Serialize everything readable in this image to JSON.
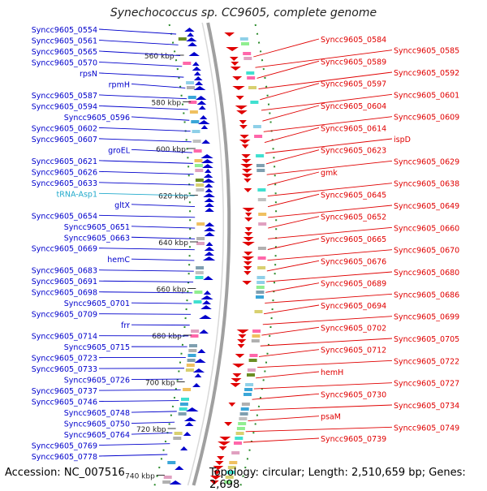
{
  "title": "Synechococcus sp. CC9605, complete genome",
  "footer": {
    "accession": "Accession: NC_007516",
    "topology": "Topology: circular; Length: 2,510,659 bp; Genes: 2,698"
  },
  "colors": {
    "left_gene": "#0000cc",
    "right_gene": "#e00000",
    "trna": "#22aacc",
    "backbone": "#a0a0a0",
    "tick": "#2a8a2a"
  },
  "ticks": [
    "560 kbp",
    "580 kbp",
    "600 kbp",
    "620 kbp",
    "640 kbp",
    "660 kbp",
    "680 kbp",
    "700 kbp",
    "720 kbp",
    "740 kbp"
  ],
  "left_labels": [
    {
      "text": "Syncc9605_0554",
      "kind": "gene"
    },
    {
      "text": "Syncc9605_0561",
      "kind": "gene"
    },
    {
      "text": "Syncc9605_0565",
      "kind": "gene"
    },
    {
      "text": "Syncc9605_0570",
      "kind": "gene"
    },
    {
      "text": "rpsN",
      "kind": "gene"
    },
    {
      "text": "rpmH",
      "kind": "gene"
    },
    {
      "text": "Syncc9605_0587",
      "kind": "gene"
    },
    {
      "text": "Syncc9605_0594",
      "kind": "gene"
    },
    {
      "text": "Syncc9605_0596",
      "kind": "gene"
    },
    {
      "text": "Syncc9605_0602",
      "kind": "gene"
    },
    {
      "text": "Syncc9605_0607",
      "kind": "gene"
    },
    {
      "text": "groEL",
      "kind": "gene"
    },
    {
      "text": "Syncc9605_0621",
      "kind": "gene"
    },
    {
      "text": "Syncc9605_0626",
      "kind": "gene"
    },
    {
      "text": "Syncc9605_0633",
      "kind": "gene"
    },
    {
      "text": "tRNA-Asp1",
      "kind": "trna"
    },
    {
      "text": "gltX",
      "kind": "gene"
    },
    {
      "text": "Syncc9605_0654",
      "kind": "gene"
    },
    {
      "text": "Syncc9605_0651",
      "kind": "gene"
    },
    {
      "text": "Syncc9605_0663",
      "kind": "gene"
    },
    {
      "text": "Syncc9605_0669",
      "kind": "gene"
    },
    {
      "text": "hemC",
      "kind": "gene"
    },
    {
      "text": "Syncc9605_0683",
      "kind": "gene"
    },
    {
      "text": "Syncc9605_0691",
      "kind": "gene"
    },
    {
      "text": "Syncc9605_0698",
      "kind": "gene"
    },
    {
      "text": "Syncc9605_0701",
      "kind": "gene"
    },
    {
      "text": "Syncc9605_0709",
      "kind": "gene"
    },
    {
      "text": "frr",
      "kind": "gene"
    },
    {
      "text": "Syncc9605_0714",
      "kind": "gene"
    },
    {
      "text": "Syncc9605_0715",
      "kind": "gene"
    },
    {
      "text": "Syncc9605_0723",
      "kind": "gene"
    },
    {
      "text": "Syncc9605_0733",
      "kind": "gene"
    },
    {
      "text": "Syncc9605_0726",
      "kind": "gene"
    },
    {
      "text": "Syncc9605_0737",
      "kind": "gene"
    },
    {
      "text": "Syncc9605_0746",
      "kind": "gene"
    },
    {
      "text": "Syncc9605_0748",
      "kind": "gene"
    },
    {
      "text": "Syncc9605_0750",
      "kind": "gene"
    },
    {
      "text": "Syncc9605_0764",
      "kind": "gene"
    },
    {
      "text": "Syncc9605_0769",
      "kind": "gene"
    },
    {
      "text": "Syncc9605_0778",
      "kind": "gene"
    }
  ],
  "right_labels": [
    {
      "text": "Syncc9605_0584"
    },
    {
      "text": "Syncc9605_0585"
    },
    {
      "text": "Syncc9605_0589"
    },
    {
      "text": "Syncc9605_0592"
    },
    {
      "text": "Syncc9605_0597"
    },
    {
      "text": "Syncc9605_0601"
    },
    {
      "text": "Syncc9605_0604"
    },
    {
      "text": "Syncc9605_0609"
    },
    {
      "text": "Syncc9605_0614"
    },
    {
      "text": "ispD"
    },
    {
      "text": "Syncc9605_0623"
    },
    {
      "text": "Syncc9605_0629"
    },
    {
      "text": "gmk"
    },
    {
      "text": "Syncc9605_0638"
    },
    {
      "text": "Syncc9605_0645"
    },
    {
      "text": "Syncc9605_0649"
    },
    {
      "text": "Syncc9605_0652"
    },
    {
      "text": "Syncc9605_0660"
    },
    {
      "text": "Syncc9605_0665"
    },
    {
      "text": "Syncc9605_0670"
    },
    {
      "text": "Syncc9605_0676"
    },
    {
      "text": "Syncc9605_0680"
    },
    {
      "text": "Syncc9605_0689"
    },
    {
      "text": "Syncc9605_0686"
    },
    {
      "text": "Syncc9605_0694"
    },
    {
      "text": "Syncc9605_0699"
    },
    {
      "text": "Syncc9605_0702"
    },
    {
      "text": "Syncc9605_0705"
    },
    {
      "text": "Syncc9605_0712"
    },
    {
      "text": "Syncc9605_0722"
    },
    {
      "text": "hemH"
    },
    {
      "text": "Syncc9605_0727"
    },
    {
      "text": "Syncc9605_0730"
    },
    {
      "text": "Syncc9605_0734"
    },
    {
      "text": "psaM"
    },
    {
      "text": "Syncc9605_0749"
    },
    {
      "text": "Syncc9605_0739"
    }
  ]
}
